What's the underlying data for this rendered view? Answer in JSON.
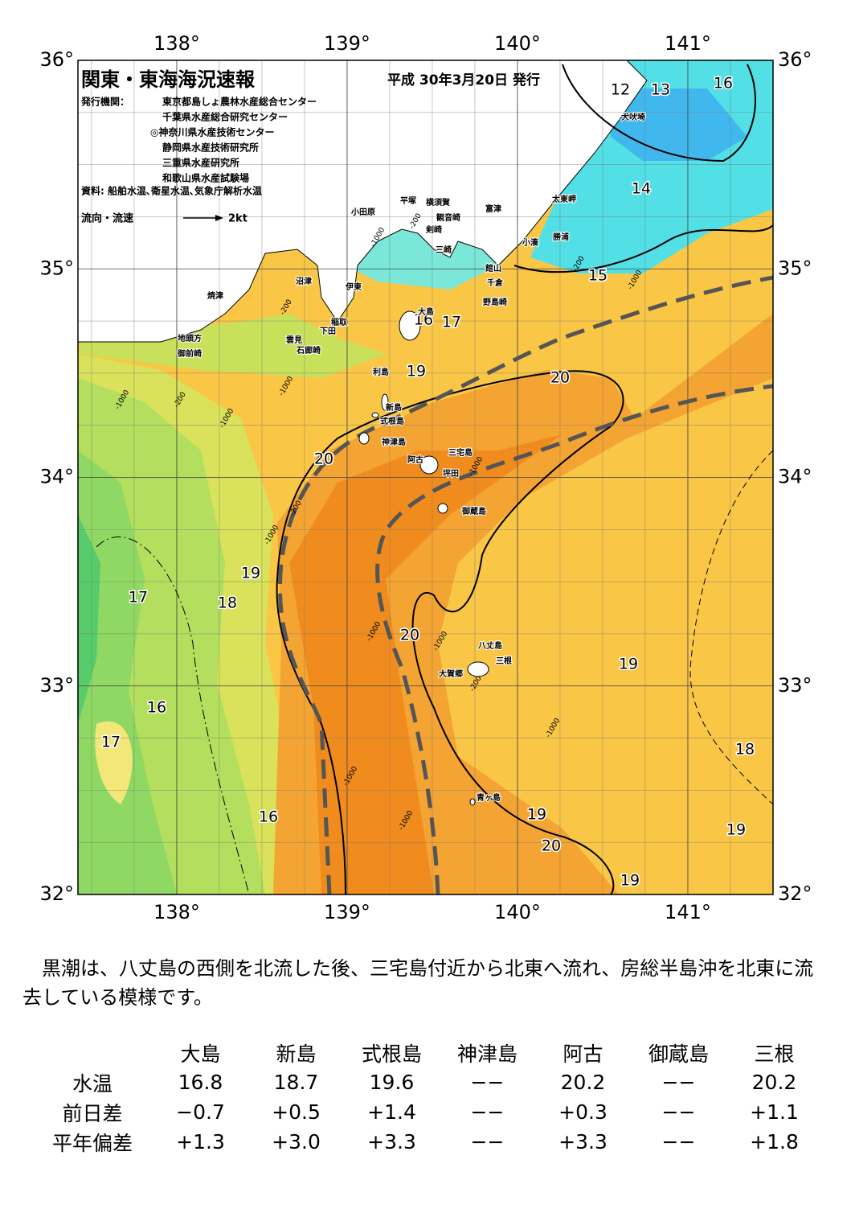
{
  "header": {
    "title": "関東・東海海況速報",
    "date": "平成 30年3月20日 発行",
    "publisher_label": "発行機関：",
    "publishers": [
      "東京都島しょ農林水産総合センター",
      "千葉県水産総合研究センター",
      "◎神奈川県水産技術センター",
      "静岡県水産技術研究所",
      "三重県水産研究所",
      "和歌山県水産試験場"
    ],
    "sources": "資料: 船舶水温､衛星水温､気象庁解析水温",
    "current_legend": "流向・流速",
    "current_scale": "2kt"
  },
  "map": {
    "lon_ticks": [
      {
        "value": 138,
        "label": "138°"
      },
      {
        "value": 139,
        "label": "139°"
      },
      {
        "value": 140,
        "label": "140°"
      },
      {
        "value": 141,
        "label": "141°"
      }
    ],
    "lat_ticks": [
      {
        "value": 36,
        "label": "36°"
      },
      {
        "value": 35,
        "label": "35°"
      },
      {
        "value": 34,
        "label": "34°"
      },
      {
        "value": 33,
        "label": "33°"
      },
      {
        "value": 32,
        "label": "32°"
      }
    ],
    "contour_labels": [
      "12",
      "13",
      "16",
      "14",
      "15",
      "16",
      "17",
      "19",
      "20",
      "20",
      "19",
      "18",
      "17",
      "20",
      "19",
      "16",
      "17",
      "18",
      "16",
      "19",
      "19",
      "20",
      "19"
    ],
    "depth_labels": [
      "-200",
      "-1000",
      "-200",
      "-1000",
      "-200",
      "-1000",
      "-1000",
      "-200",
      "-1000",
      "-1000",
      "-1000",
      "-1000",
      "-200",
      "-1000",
      "-1000",
      "-1000",
      "-200",
      "-1000"
    ],
    "place_names": [
      "犬吠埼",
      "太東岬",
      "勝浦",
      "小湊",
      "富津",
      "横須賀",
      "観音崎",
      "剣崎",
      "三崎",
      "平塚",
      "小田原",
      "館山",
      "千倉",
      "野島崎",
      "沼津",
      "伊東",
      "焼津",
      "稲取",
      "下田",
      "雲見",
      "石廊崎",
      "地頭方",
      "御前崎",
      "大島",
      "利島",
      "新島",
      "式根島",
      "神津島",
      "三宅島",
      "阿古",
      "坪田",
      "御蔵島",
      "八丈島",
      "三根",
      "大賀郷",
      "青ヶ島"
    ]
  },
  "description": "黒潮は、八丈島の西側を北流した後、三宅島付近から北東へ流れ、房総半島沖を北東に流去している模様です。",
  "table": {
    "columns": [
      "大島",
      "新島",
      "式根島",
      "神津島",
      "阿古",
      "御蔵島",
      "三根"
    ],
    "rows": [
      {
        "label": "水温",
        "values": [
          "16.8",
          "18.7",
          "19.6",
          "−−",
          "20.2",
          "−−",
          "20.2"
        ]
      },
      {
        "label": "前日差",
        "values": [
          "−0.7",
          "+0.5",
          "+1.4",
          "−−",
          "+0.3",
          "−−",
          "+1.1"
        ]
      },
      {
        "label": "平年偏差",
        "values": [
          "+1.3",
          "+3.0",
          "+3.3",
          "−−",
          "+3.3",
          "−−",
          "+1.8"
        ]
      }
    ]
  }
}
